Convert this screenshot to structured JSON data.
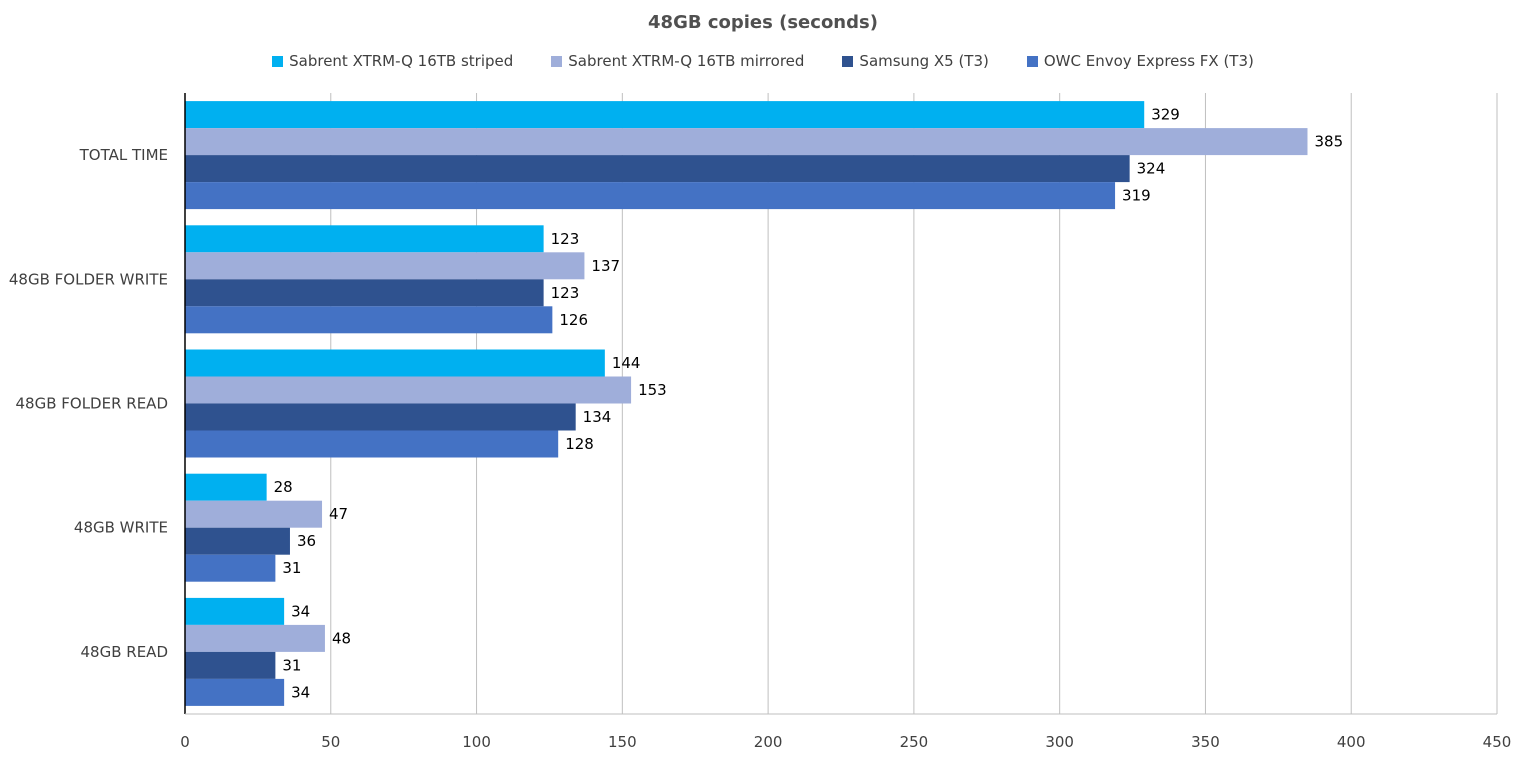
{
  "chart_data": {
    "type": "bar",
    "orientation": "horizontal",
    "title": "48GB copies (seconds)",
    "categories": [
      "TOTAL TIME",
      "48GB FOLDER WRITE",
      "48GB FOLDER READ",
      "48GB WRITE",
      "48GB READ"
    ],
    "series": [
      {
        "name": "Sabrent XTRM-Q 16TB striped",
        "color": "#00B0F0",
        "values": [
          329,
          123,
          144,
          28,
          34
        ]
      },
      {
        "name": "Sabrent XTRM-Q 16TB mirrored",
        "color": "#9FAEDA",
        "values": [
          385,
          137,
          153,
          47,
          48
        ]
      },
      {
        "name": "Samsung X5 (T3)",
        "color": "#2F528F",
        "values": [
          324,
          123,
          134,
          36,
          31
        ]
      },
      {
        "name": "OWC Envoy Express FX (T3)",
        "color": "#4472C4",
        "values": [
          319,
          126,
          128,
          31,
          34
        ]
      }
    ],
    "xlim": [
      0,
      450
    ],
    "xticks": [
      "0",
      "50",
      "100",
      "150",
      "200",
      "250",
      "300",
      "350",
      "400",
      "450"
    ],
    "grid": true,
    "legend_position": "top"
  }
}
